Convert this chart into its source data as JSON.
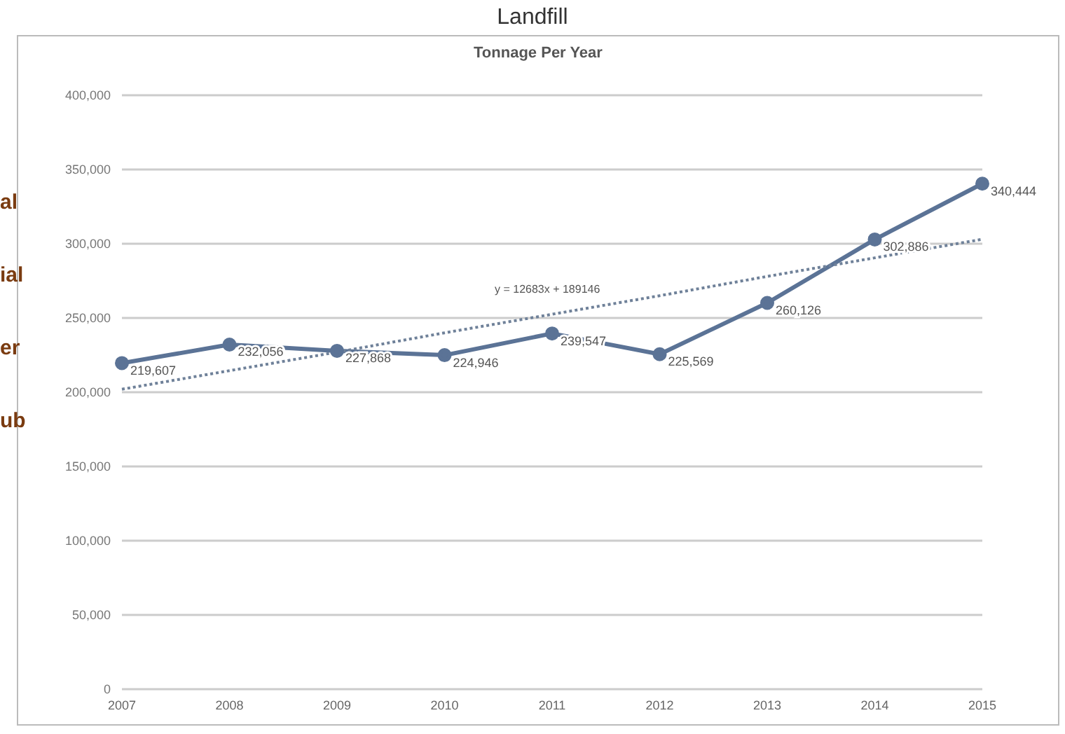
{
  "chart_data": {
    "type": "line",
    "title": "Landfill",
    "subtitle": "Tonnage Per Year",
    "categories": [
      "2007",
      "2008",
      "2009",
      "2010",
      "2011",
      "2012",
      "2013",
      "2014",
      "2015"
    ],
    "series": [
      {
        "color": "#5b7396",
        "values": [
          219607,
          232056,
          227868,
          224946,
          239547,
          225569,
          260126,
          302886,
          340444
        ],
        "marker": "circle",
        "line_style": "solid",
        "value_labels": [
          "219,607",
          "232,056",
          "227,868",
          "224,946",
          "239,547",
          "225,569",
          "260,126",
          "302,886",
          "340,444"
        ]
      },
      {
        "type": "line",
        "color": "#6f8199",
        "values": [
          202000,
          214500,
          227000,
          240000,
          252500,
          265000,
          278000,
          290500,
          303000
        ],
        "marker": "none",
        "line_style": "dotted"
      }
    ],
    "ylim": [
      0,
      400000
    ],
    "yticks": [
      0,
      {
        "value": 50000,
        "label": "50,000"
      },
      {
        "value": 100000,
        "label": "100,000"
      },
      {
        "value": 150000,
        "label": "150,000"
      },
      {
        "value": 200000,
        "label": "200,000"
      },
      {
        "value": 250000,
        "label": "250,000"
      },
      {
        "value": 300000,
        "label": "300,000"
      },
      {
        "value": 350000,
        "label": "350,000"
      },
      {
        "value": 400000,
        "label": "400,000"
      }
    ],
    "grid": "y",
    "annotations": [
      "y = 12683x + 189146",
      "al",
      "ial",
      "er",
      "ub"
    ]
  }
}
